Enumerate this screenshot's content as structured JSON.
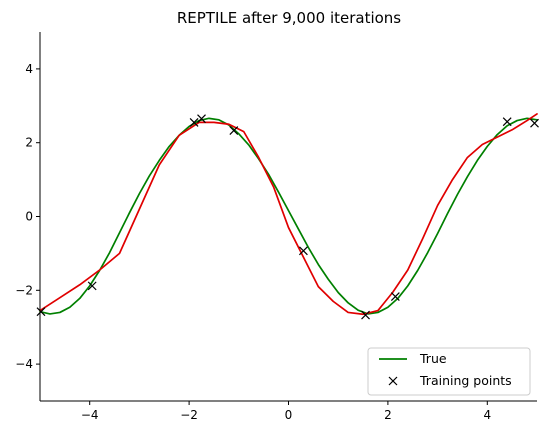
{
  "chart_data": {
    "type": "line",
    "title": "REPTILE after 9,000 iterations",
    "xlabel": "",
    "ylabel": "",
    "xlim": [
      -5,
      5
    ],
    "ylim": [
      -5,
      5
    ],
    "xticks": [
      -4,
      -2,
      0,
      2,
      4
    ],
    "yticks": [
      -4,
      -2,
      0,
      2,
      4
    ],
    "xtick_labels": [
      "−4",
      "−2",
      "0",
      "2",
      "4"
    ],
    "ytick_labels": [
      "−4",
      "−2",
      "0",
      "2",
      "4"
    ],
    "grid": false,
    "legend_position": "lower-right",
    "series": [
      {
        "name": "True",
        "kind": "line",
        "color": "#008000",
        "x": [
          -5.0,
          -4.8,
          -4.6,
          -4.4,
          -4.2,
          -4.0,
          -3.8,
          -3.6,
          -3.4,
          -3.2,
          -3.0,
          -2.8,
          -2.6,
          -2.4,
          -2.2,
          -2.0,
          -1.8,
          -1.6,
          -1.4,
          -1.2,
          -1.0,
          -0.8,
          -0.6,
          -0.4,
          -0.2,
          0.0,
          0.2,
          0.4,
          0.6,
          0.8,
          1.0,
          1.2,
          1.4,
          1.6,
          1.8,
          2.0,
          2.2,
          2.4,
          2.6,
          2.8,
          3.0,
          3.2,
          3.4,
          3.6,
          3.8,
          4.0,
          4.2,
          4.4,
          4.6,
          4.8,
          5.0
        ],
        "y": [
          -2.58,
          -2.64,
          -2.6,
          -2.46,
          -2.22,
          -1.88,
          -1.46,
          -0.98,
          -0.44,
          0.1,
          0.62,
          1.1,
          1.52,
          1.9,
          2.2,
          2.44,
          2.6,
          2.66,
          2.62,
          2.48,
          2.24,
          1.94,
          1.56,
          1.14,
          0.66,
          0.16,
          -0.34,
          -0.84,
          -1.3,
          -1.7,
          -2.06,
          -2.34,
          -2.54,
          -2.64,
          -2.6,
          -2.46,
          -2.22,
          -1.88,
          -1.46,
          -0.98,
          -0.46,
          0.08,
          0.6,
          1.08,
          1.52,
          1.9,
          2.22,
          2.46,
          2.6,
          2.66,
          2.62
        ]
      },
      {
        "name": "",
        "kind": "line",
        "color": "#e00000",
        "x": [
          -5.0,
          -4.6,
          -4.2,
          -3.8,
          -3.4,
          -3.0,
          -2.6,
          -2.2,
          -1.8,
          -1.5,
          -1.2,
          -0.9,
          -0.6,
          -0.3,
          0.0,
          0.3,
          0.6,
          0.9,
          1.2,
          1.5,
          1.8,
          2.1,
          2.4,
          2.7,
          3.0,
          3.3,
          3.6,
          3.9,
          4.2,
          4.5,
          4.8,
          5.0
        ],
        "y": [
          -2.55,
          -2.2,
          -1.85,
          -1.45,
          -1.0,
          0.2,
          1.4,
          2.2,
          2.55,
          2.55,
          2.5,
          2.3,
          1.6,
          0.8,
          -0.3,
          -1.1,
          -1.9,
          -2.3,
          -2.6,
          -2.65,
          -2.55,
          -2.05,
          -1.45,
          -0.6,
          0.3,
          1.0,
          1.6,
          1.95,
          2.15,
          2.35,
          2.6,
          2.78
        ]
      },
      {
        "name": "Training points",
        "kind": "scatter",
        "marker": "x",
        "color": "#000000",
        "x": [
          -4.98,
          -3.95,
          -1.9,
          -1.75,
          -1.1,
          0.3,
          1.55,
          2.15,
          4.4,
          4.95
        ],
        "y": [
          -2.58,
          -1.88,
          2.55,
          2.65,
          2.33,
          -0.93,
          -2.67,
          -2.17,
          2.57,
          2.53
        ]
      }
    ]
  }
}
